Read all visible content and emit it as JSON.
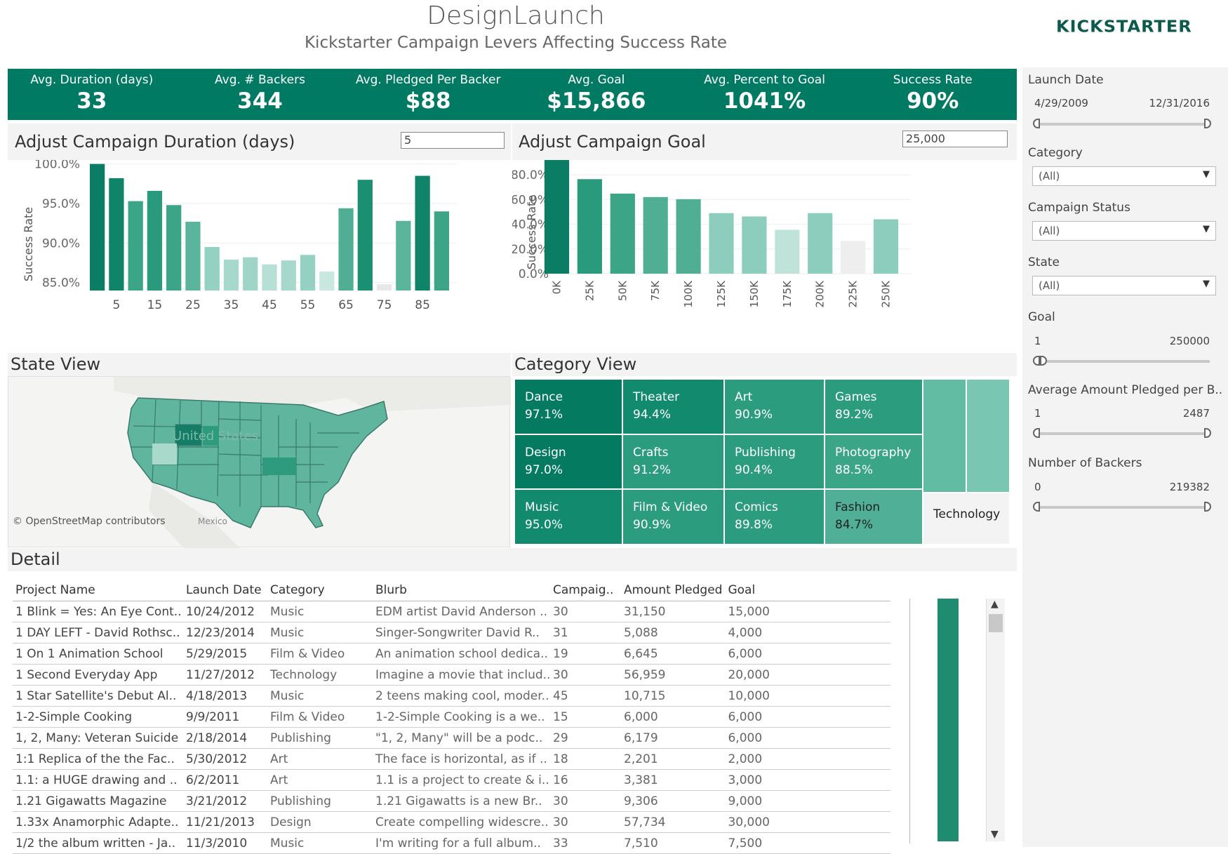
{
  "header": {
    "title": "DesignLaunch",
    "subtitle": "Kickstarter Campaign Levers Affecting Success Rate",
    "logo_text": "KICKSTARTER"
  },
  "kpis": [
    {
      "label": "Avg. Duration (days)",
      "value": "33"
    },
    {
      "label": "Avg. # Backers",
      "value": "344"
    },
    {
      "label": "Avg. Pledged Per Backer",
      "value": "$88"
    },
    {
      "label": "Avg. Goal",
      "value": "$15,866"
    },
    {
      "label": "Avg. Percent to Goal",
      "value": "1041%"
    },
    {
      "label": "Success Rate",
      "value": "90%"
    }
  ],
  "duration_section": {
    "title": "Adjust Campaign Duration (days)",
    "input_value": "5"
  },
  "goal_section": {
    "title": "Adjust Campaign Goal",
    "input_value": "25,000"
  },
  "state_section": {
    "title": "State View",
    "map_label": "United States",
    "mexico_label": "Mexico",
    "attribution": "© OpenStreetMap contributors"
  },
  "category_section": {
    "title": "Category View"
  },
  "detail_section": {
    "title": "Detail",
    "columns": [
      "Project Name",
      "Launch Date",
      "Category",
      "Blurb",
      "Campaig..",
      "Amount Pledged",
      "Goal"
    ],
    "rows": [
      [
        "1 Blink = Yes: An Eye Cont..",
        "10/24/2012",
        "Music",
        "EDM artist David Anderson ..",
        "30",
        "31,150",
        "15,000"
      ],
      [
        "1 DAY LEFT - David Rothsc..",
        "12/23/2014",
        "Music",
        "Singer-Songwriter David R..",
        "31",
        "5,088",
        "4,000"
      ],
      [
        "1 On 1 Animation School",
        "5/29/2015",
        "Film & Video",
        "An animation school dedica..",
        "19",
        "6,645",
        "6,000"
      ],
      [
        "1 Second Everyday App",
        "11/27/2012",
        "Technology",
        "Imagine a movie that includ..",
        "30",
        "56,959",
        "20,000"
      ],
      [
        "1 Star Satellite's Debut Al..",
        "4/18/2013",
        "Music",
        "2 teens making cool, moder..",
        "45",
        "10,715",
        "10,000"
      ],
      [
        "1-2-Simple Cooking",
        "9/9/2011",
        "Film & Video",
        "1-2-Simple Cooking is a we..",
        "15",
        "6,000",
        "6,000"
      ],
      [
        "1, 2, Many: Veteran Suicide",
        "2/18/2014",
        "Publishing",
        "\"1, 2, Many\" will be a podc..",
        "29",
        "6,179",
        "6,000"
      ],
      [
        "1:1 Replica of the the Fac..",
        "5/30/2012",
        "Art",
        "The face is horizontal, as if ..",
        "18",
        "2,201",
        "2,000"
      ],
      [
        "1.1: a HUGE drawing and ..",
        "6/2/2011",
        "Art",
        "1.1 is a project to create & i..",
        "16",
        "3,381",
        "3,000"
      ],
      [
        "1.21 Gigawatts Magazine",
        "3/21/2012",
        "Publishing",
        "1.21 Gigawatts is a new Br..",
        "30",
        "9,306",
        "9,000"
      ],
      [
        "1.33x Anamorphic Adapte..",
        "11/21/2013",
        "Design",
        "Create compelling widescre..",
        "30",
        "57,734",
        "30,000"
      ],
      [
        "1/2 the album written - Ja..",
        "11/3/2010",
        "Music",
        "I'm writing for a full album..",
        "33",
        "7,510",
        "7,500"
      ]
    ]
  },
  "filters": {
    "launch_date": {
      "title": "Launch Date",
      "min": "4/29/2009",
      "max": "12/31/2016"
    },
    "category": {
      "title": "Category",
      "value": "(All)"
    },
    "campaign_status": {
      "title": "Campaign Status",
      "value": "(All)"
    },
    "state": {
      "title": "State",
      "value": "(All)"
    },
    "goal": {
      "title": "Goal",
      "min": "1",
      "max": "250000"
    },
    "avg_pledged": {
      "title": "Average Amount Pledged per B..",
      "min": "1",
      "max": "2487"
    },
    "backers": {
      "title": "Number of Backers",
      "min": "0",
      "max": "219382"
    }
  },
  "colors": {
    "brand": "#007a62",
    "panel": "#f3f3f3",
    "logo": "#0b5a4b"
  },
  "chart_data": [
    {
      "type": "bar",
      "ylabel": "Success Rate",
      "ylim": [
        84,
        100.5
      ],
      "yticks": [
        "85.0%",
        "90.0%",
        "95.0%",
        "100.0%"
      ],
      "xticks": [
        "5",
        "15",
        "25",
        "35",
        "45",
        "55",
        "65",
        "75",
        "85"
      ],
      "x": [
        1,
        5,
        10,
        15,
        20,
        25,
        30,
        35,
        40,
        45,
        50,
        55,
        60,
        65,
        70,
        75,
        80,
        85,
        90
      ],
      "values": [
        100.0,
        98.2,
        95.3,
        96.6,
        94.8,
        92.7,
        89.5,
        87.9,
        88.2,
        87.3,
        87.8,
        88.5,
        86.4,
        94.4,
        98.0,
        84.8,
        92.8,
        98.5,
        94.0
      ],
      "colors": [
        "#0a7d64",
        "#0f8468",
        "#3ca487",
        "#2a9a7d",
        "#3ca487",
        "#5bb59c",
        "#94d1c2",
        "#a6d9cc",
        "#9fd5c7",
        "#b6e0d5",
        "#a6d9cc",
        "#94d1c2",
        "#c8e8df",
        "#4fae94",
        "#1a8f72",
        "#e8e8e8",
        "#5bb59c",
        "#0f8468",
        "#3ca487"
      ]
    },
    {
      "type": "bar",
      "ylabel": "Success Rate",
      "ylim": [
        0,
        92
      ],
      "yticks": [
        "0.0%",
        "20.0%",
        "40.0%",
        "60.0%",
        "80.0%"
      ],
      "categories": [
        "0K",
        "25K",
        "50K",
        "75K",
        "100K",
        "125K",
        "150K",
        "175K",
        "200K",
        "225K",
        "250K"
      ],
      "values": [
        92.0,
        76.5,
        64.8,
        62.0,
        60.3,
        49.0,
        46.3,
        35.5,
        49.0,
        26.5,
        44.0
      ],
      "colors": [
        "#0a7d64",
        "#2a9a7d",
        "#3ca487",
        "#4fae94",
        "#4fae94",
        "#8ccdbd",
        "#8ccdbd",
        "#bfe3d9",
        "#8ccdbd",
        "#eeeeee",
        "#8ccdbd"
      ]
    },
    {
      "type": "treemap",
      "cells": [
        {
          "label": "Dance",
          "value": "97.1%",
          "color": "#047a61",
          "dark": false
        },
        {
          "label": "Theater",
          "value": "94.4%",
          "color": "#118a6d",
          "dark": false
        },
        {
          "label": "Art",
          "value": "90.9%",
          "color": "#2b9c7e",
          "dark": false
        },
        {
          "label": "Games",
          "value": "89.2%",
          "color": "#2b9c7e",
          "dark": false
        },
        {
          "label": "Design",
          "value": "97.0%",
          "color": "#047a61",
          "dark": false
        },
        {
          "label": "Crafts",
          "value": "91.2%",
          "color": "#2b9c7e",
          "dark": false
        },
        {
          "label": "Publishing",
          "value": "90.4%",
          "color": "#2b9c7e",
          "dark": false
        },
        {
          "label": "Photography",
          "value": "88.5%",
          "color": "#3aa587",
          "dark": false
        },
        {
          "label": "Music",
          "value": "95.0%",
          "color": "#118a6d",
          "dark": false
        },
        {
          "label": "Film & Video",
          "value": "90.9%",
          "color": "#2b9c7e",
          "dark": false
        },
        {
          "label": "Comics",
          "value": "89.8%",
          "color": "#2b9c7e",
          "dark": false
        },
        {
          "label": "Fashion",
          "value": "84.7%",
          "color": "#4fb097",
          "dark": true
        },
        {
          "label": "Technology",
          "value": "",
          "color": "#f3f3f3",
          "dark": true
        }
      ]
    }
  ]
}
